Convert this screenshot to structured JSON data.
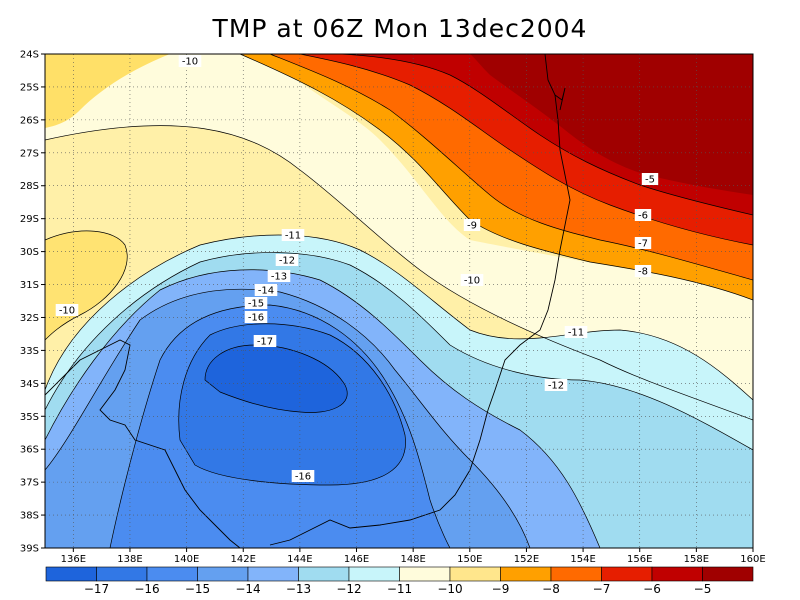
{
  "title": "TMP at 06Z Mon 13dec2004",
  "map": {
    "variable": "TMP",
    "lat_range": [
      "24S",
      "39S"
    ],
    "lon_range": [
      "135E",
      "160E"
    ],
    "lat_ticks": [
      "24S",
      "25S",
      "26S",
      "27S",
      "28S",
      "29S",
      "30S",
      "31S",
      "32S",
      "33S",
      "34S",
      "35S",
      "36S",
      "37S",
      "38S",
      "39S"
    ],
    "lon_ticks": [
      "136E",
      "138E",
      "140E",
      "142E",
      "144E",
      "146E",
      "148E",
      "150E",
      "152E",
      "154E",
      "156E",
      "158E",
      "160E"
    ],
    "grid": true,
    "contour_labels": [
      "-10",
      "-5",
      "-6",
      "-7",
      "-8",
      "-9",
      "-10",
      "-11",
      "-12",
      "-13",
      "-14",
      "-15",
      "-16",
      "-17",
      "-10",
      "-11",
      "-12",
      "-16"
    ]
  },
  "colorbar": {
    "labels": [
      "-17",
      "-16",
      "-15",
      "-14",
      "-13",
      "-12",
      "-11",
      "-10",
      "-9",
      "-8",
      "-7",
      "-6",
      "-5"
    ],
    "colors": [
      "#1e64dc",
      "#3278e6",
      "#4b8cf0",
      "#64a0f0",
      "#82b4fa",
      "#a0dcf0",
      "#c8f5fa",
      "#fffcdc",
      "#ffe68c",
      "#ffa000",
      "#ff6a00",
      "#e61e00",
      "#c00000",
      "#a00000"
    ]
  },
  "colors": {
    "c17": "#1e64dc",
    "c16": "#3278e6",
    "c15": "#4b8cf0",
    "c14": "#64a0f0",
    "c13": "#82b4fa",
    "c12": "#a0dcf0",
    "c11": "#c8f5fa",
    "c10": "#fffcdc",
    "c9": "#fff0a8",
    "c8": "#ffe068",
    "c7": "#ffa000",
    "c6": "#ff6a00",
    "c5": "#e61e00",
    "c4": "#c00000",
    "c3": "#a00000"
  }
}
